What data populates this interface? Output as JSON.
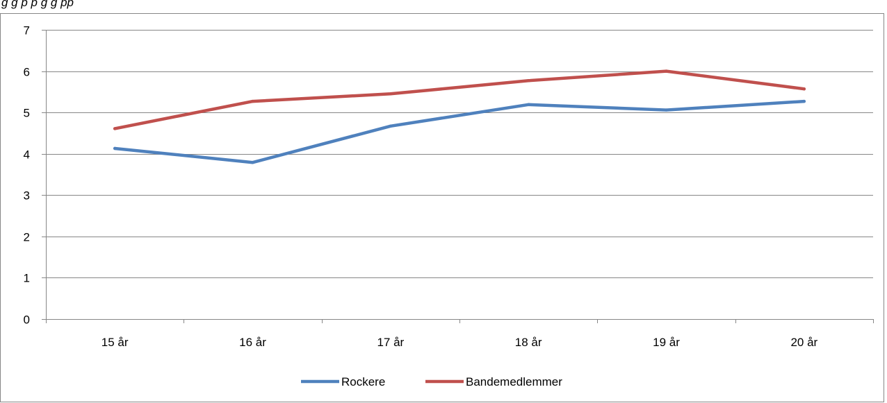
{
  "caption": "g                      g                p        p                                                             g   g       pp",
  "chart_data": {
    "type": "line",
    "categories": [
      "15 år",
      "16 år",
      "17 år",
      "18 år",
      "19 år",
      "20 år"
    ],
    "series": [
      {
        "name": "Rockere",
        "values": [
          4.13,
          3.79,
          4.67,
          5.19,
          5.06,
          5.27
        ],
        "color": "#4F81BD"
      },
      {
        "name": "Bandemedlemmer",
        "values": [
          4.61,
          5.27,
          5.45,
          5.77,
          6.0,
          5.57
        ],
        "color": "#C0504D"
      }
    ],
    "ylim": [
      0,
      7
    ],
    "yticks": [
      0,
      1,
      2,
      3,
      4,
      5,
      6,
      7
    ],
    "grid": true,
    "legend": "bottom-center",
    "title": "",
    "xlabel": "",
    "ylabel": ""
  }
}
